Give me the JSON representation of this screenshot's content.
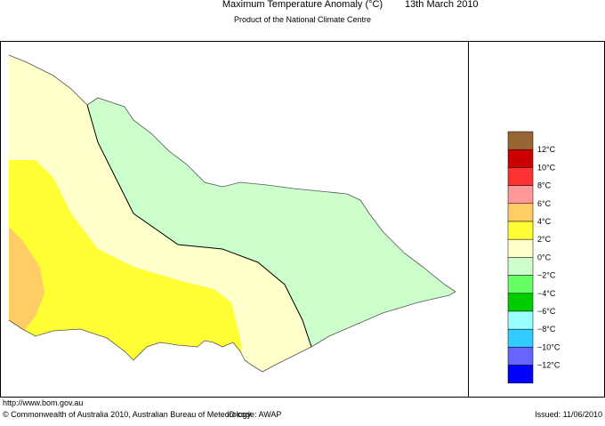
{
  "header": {
    "title": "Maximum Temperature Anomaly (°C)",
    "date": "13th March 2010",
    "subtitle": "Product of the National Climate Centre"
  },
  "legend": {
    "colors": [
      "#996633",
      "#cc0000",
      "#ff3333",
      "#ff9999",
      "#ffcc66",
      "#ffff33",
      "#ffffcc",
      "#ccffcc",
      "#66ff66",
      "#00cc00",
      "#99ffff",
      "#33ccff",
      "#6666ff",
      "#0000ff"
    ],
    "labels": [
      "12°C",
      "10°C",
      "8°C",
      "6°C",
      "4°C",
      "2°C",
      "0°C",
      "−2°C",
      "−4°C",
      "−6°C",
      "−8°C",
      "−10°C",
      "−12°C"
    ]
  },
  "footer": {
    "url": "http://www.bom.gov.au",
    "copyright": "© Commonwealth of Australia 2010, Australian Bureau of Meteorology",
    "id_code": "ID code: AWAP",
    "issued": "Issued: 11/06/2010"
  }
}
